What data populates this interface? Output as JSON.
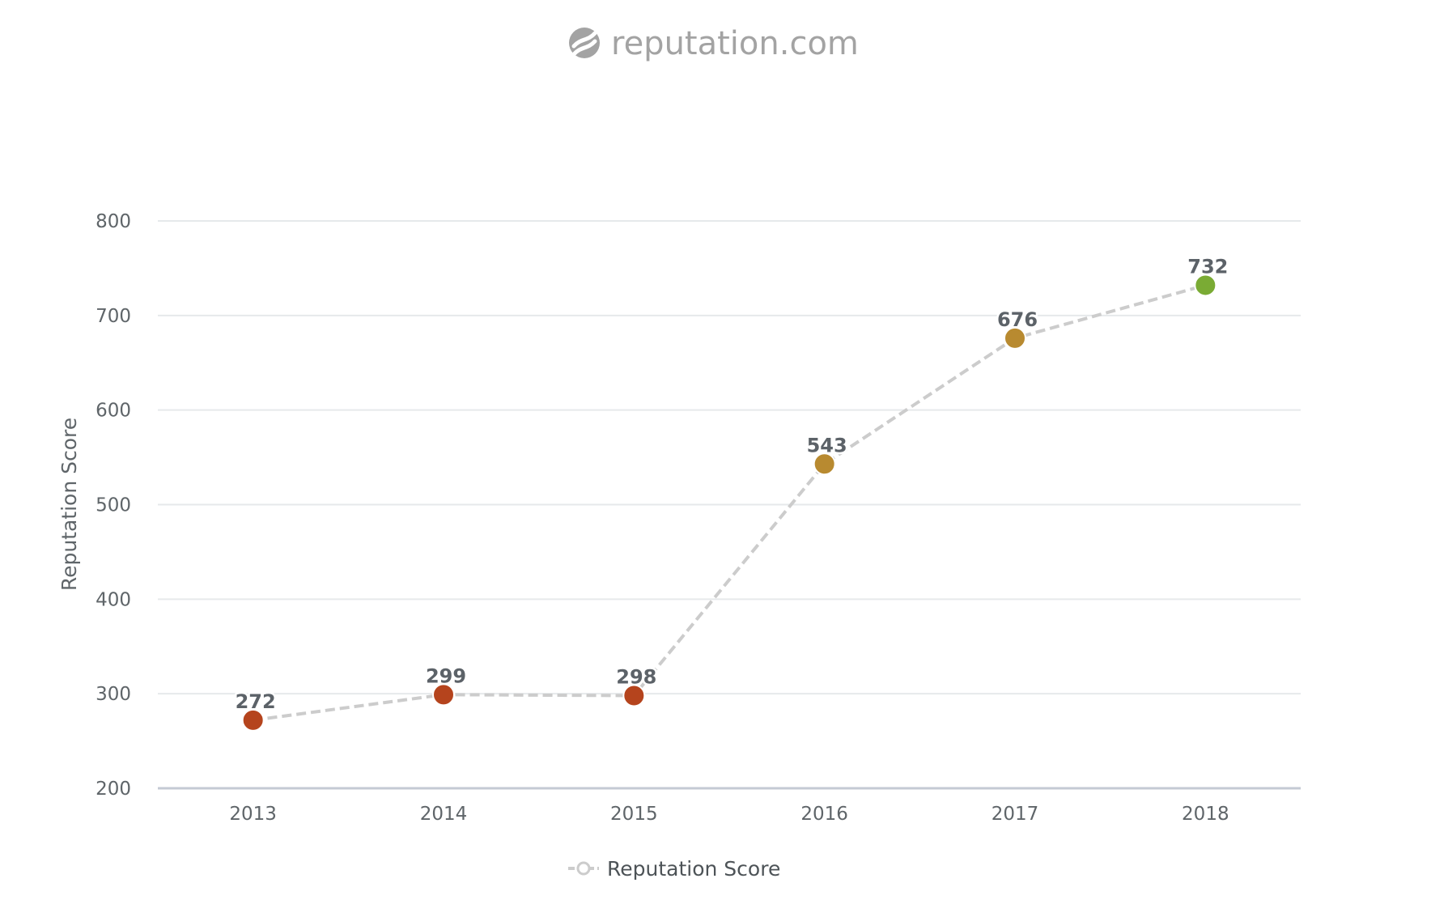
{
  "brand": {
    "name": "reputation.com",
    "icon": "reputation-logo-icon",
    "color": "#a3a3a3"
  },
  "chart_data": {
    "type": "line",
    "title": "",
    "xlabel": "",
    "ylabel": "Reputation Score",
    "categories": [
      "2013",
      "2014",
      "2015",
      "2016",
      "2017",
      "2018"
    ],
    "series": [
      {
        "name": "Reputation Score",
        "values": [
          272,
          299,
          298,
          543,
          676,
          732
        ],
        "point_colors": [
          "#b5441d",
          "#b5441d",
          "#b5441d",
          "#b88a30",
          "#b88a30",
          "#7aab34"
        ],
        "line_color": "#cccccc",
        "line_style": "dashed"
      }
    ],
    "yticks": [
      "200",
      "300",
      "400",
      "500",
      "600",
      "700",
      "800"
    ],
    "ylim": [
      200,
      800
    ],
    "grid": true,
    "data_labels": true,
    "legend": {
      "position": "bottom-center",
      "entries": [
        "Reputation Score"
      ]
    }
  }
}
